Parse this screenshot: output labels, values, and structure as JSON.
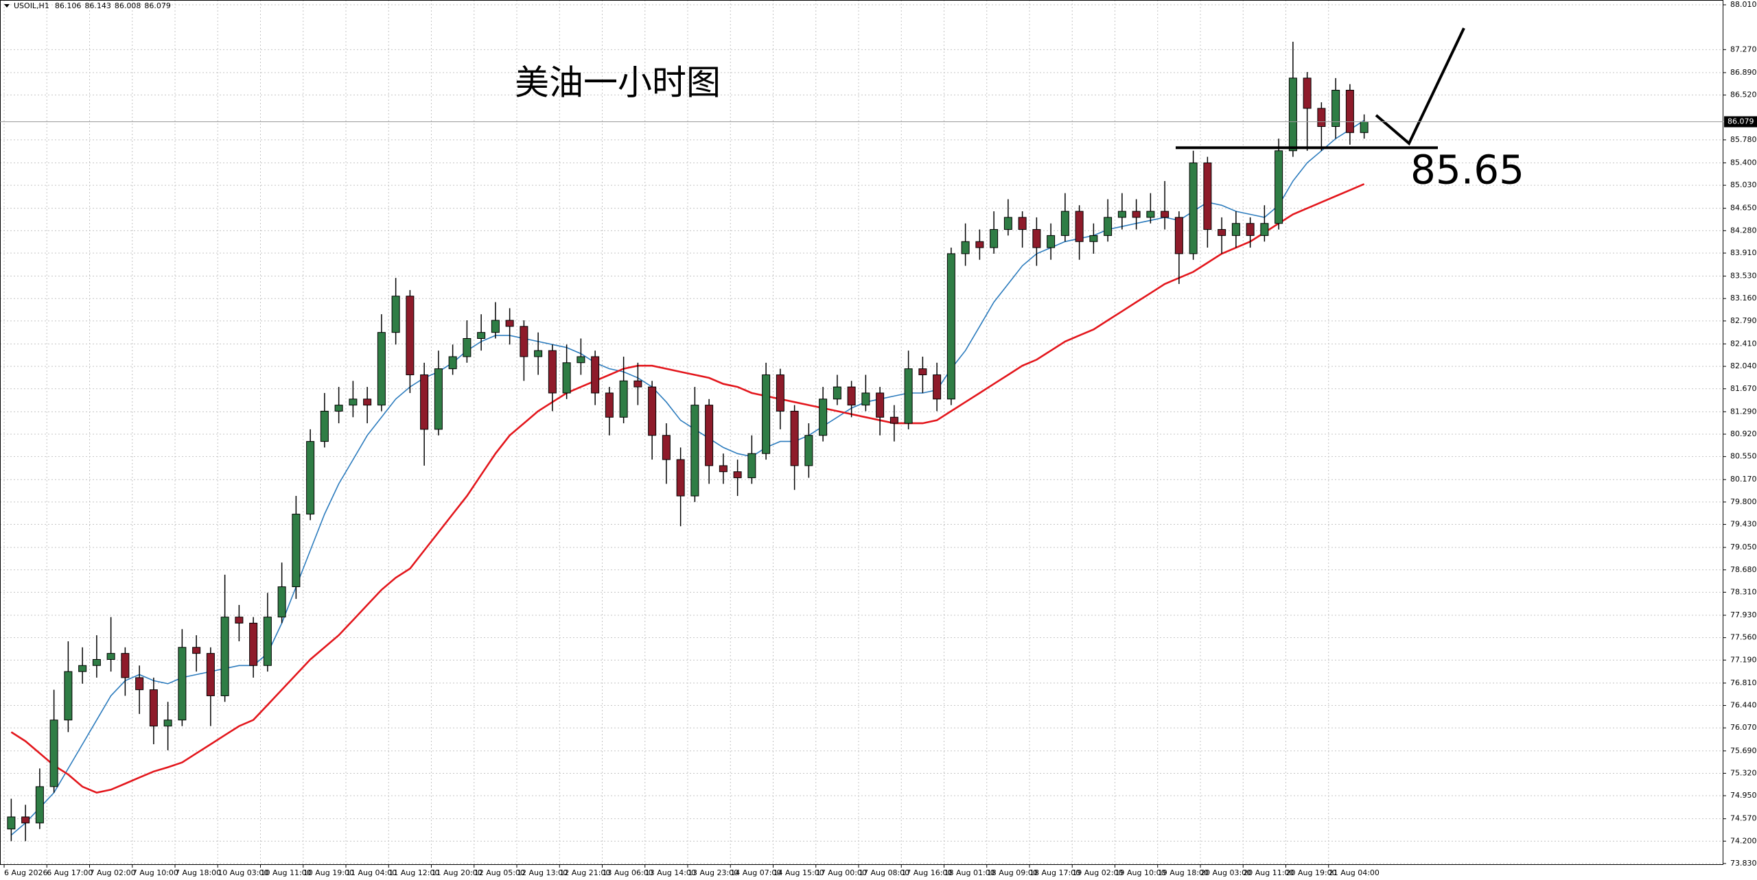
{
  "chart_data": {
    "type": "candlestick",
    "symbol": "USOIL,H1",
    "header_ohlc": [
      86.106,
      86.143,
      86.008,
      86.079
    ],
    "title": "美油一小时图",
    "categories": [
      "6 Aug 2026",
      null,
      null,
      "6 Aug 17:00",
      null,
      null,
      "7 Aug 02:00",
      null,
      null,
      "7 Aug 10:00",
      null,
      null,
      "7 Aug 18:00",
      null,
      null,
      "10 Aug 03:00",
      null,
      null,
      "10 Aug 11:00",
      null,
      null,
      "10 Aug 19:00",
      null,
      null,
      "11 Aug 04:00",
      null,
      null,
      "11 Aug 12:00",
      null,
      null,
      "11 Aug 20:00",
      null,
      null,
      "12 Aug 05:00",
      null,
      null,
      "12 Aug 13:00",
      null,
      null,
      "12 Aug 21:00",
      null,
      null,
      "13 Aug 06:00",
      null,
      null,
      "13 Aug 14:00",
      null,
      null,
      "13 Aug 23:00",
      null,
      null,
      "14 Aug 07:00",
      null,
      null,
      "14 Aug 15:00",
      null,
      null,
      "17 Aug 00:00",
      null,
      null,
      "17 Aug 08:00",
      null,
      null,
      "17 Aug 16:00",
      null,
      null,
      "18 Aug 01:00",
      null,
      null,
      "18 Aug 09:00",
      null,
      null,
      "18 Aug 17:00",
      null,
      null,
      "19 Aug 02:00",
      null,
      null,
      "19 Aug 10:00",
      null,
      null,
      "19 Aug 18:00",
      null,
      null,
      "20 Aug 03:00",
      null,
      null,
      "20 Aug 11:00",
      null,
      null,
      "20 Aug 19:00",
      null,
      null,
      "21 Aug 04:00",
      null,
      null
    ],
    "open": [
      74.4,
      74.6,
      74.5,
      75.1,
      76.2,
      77.0,
      77.1,
      77.2,
      77.3,
      76.9,
      76.7,
      76.1,
      76.2,
      77.4,
      77.3,
      76.6,
      77.9,
      77.8,
      77.1,
      77.9,
      78.4,
      79.6,
      80.8,
      81.3,
      81.4,
      81.5,
      81.4,
      82.6,
      83.2,
      81.9,
      81.0,
      82.0,
      82.2,
      82.5,
      82.6,
      82.8,
      82.7,
      82.2,
      82.3,
      81.6,
      82.1,
      82.2,
      81.6,
      81.2,
      81.8,
      81.7,
      80.9,
      80.5,
      79.9,
      81.4,
      80.4,
      80.3,
      80.2,
      80.6,
      81.9,
      81.3,
      80.4,
      80.9,
      81.5,
      81.7,
      81.4,
      81.6,
      81.2,
      81.1,
      82.0,
      81.9,
      81.5,
      83.9,
      84.1,
      84.0,
      84.3,
      84.5,
      84.3,
      84.0,
      84.2,
      84.6,
      84.1,
      84.2,
      84.5,
      84.6,
      84.5,
      84.6,
      84.5,
      83.9,
      85.4,
      84.3,
      84.2,
      84.4,
      84.2,
      84.4,
      85.6,
      86.8,
      86.3,
      86.0,
      86.6,
      85.9
    ],
    "high": [
      74.9,
      74.8,
      75.4,
      76.7,
      77.5,
      77.4,
      77.6,
      77.9,
      77.4,
      77.1,
      76.9,
      76.5,
      77.7,
      77.6,
      77.4,
      78.6,
      78.1,
      77.9,
      78.3,
      78.8,
      79.9,
      81.0,
      81.6,
      81.7,
      81.8,
      81.7,
      82.9,
      83.5,
      83.3,
      82.1,
      82.3,
      82.4,
      82.8,
      82.9,
      83.1,
      83.0,
      82.8,
      82.6,
      82.4,
      82.4,
      82.5,
      82.3,
      81.7,
      82.2,
      82.1,
      81.8,
      81.1,
      80.7,
      81.7,
      81.5,
      80.6,
      80.5,
      80.9,
      82.1,
      82.0,
      81.4,
      81.1,
      81.7,
      81.9,
      81.8,
      81.9,
      81.7,
      81.4,
      82.3,
      82.2,
      82.1,
      84.0,
      84.4,
      84.3,
      84.6,
      84.8,
      84.6,
      84.5,
      84.4,
      84.9,
      84.7,
      84.4,
      84.8,
      84.9,
      84.8,
      84.9,
      85.1,
      84.6,
      85.6,
      85.5,
      84.5,
      84.6,
      84.5,
      84.7,
      85.8,
      87.4,
      86.9,
      86.4,
      86.8,
      86.7,
      86.2
    ],
    "low": [
      74.2,
      74.2,
      74.4,
      75.0,
      76.0,
      76.8,
      76.9,
      77.0,
      76.6,
      76.3,
      75.8,
      75.7,
      76.1,
      77.0,
      76.1,
      76.5,
      77.5,
      76.9,
      77.0,
      77.8,
      78.2,
      79.5,
      80.7,
      81.1,
      81.2,
      81.1,
      81.3,
      82.4,
      81.6,
      80.4,
      80.9,
      81.9,
      82.1,
      82.3,
      82.5,
      82.4,
      81.8,
      81.9,
      81.3,
      81.5,
      81.9,
      81.4,
      80.9,
      81.1,
      81.4,
      80.5,
      80.1,
      79.4,
      79.8,
      80.1,
      80.1,
      79.9,
      80.1,
      80.5,
      81.0,
      80.0,
      80.2,
      80.8,
      81.4,
      81.2,
      81.3,
      80.9,
      80.8,
      81.0,
      81.6,
      81.3,
      81.4,
      83.7,
      83.8,
      83.9,
      84.2,
      84.0,
      83.7,
      83.8,
      84.1,
      83.8,
      83.9,
      84.1,
      84.3,
      84.3,
      84.4,
      84.3,
      83.4,
      83.8,
      84.0,
      83.9,
      84.0,
      84.0,
      84.1,
      84.3,
      85.5,
      85.6,
      85.6,
      85.8,
      85.7,
      85.8
    ],
    "close": [
      74.6,
      74.5,
      75.1,
      76.2,
      77.0,
      77.1,
      77.2,
      77.3,
      76.9,
      76.7,
      76.1,
      76.2,
      77.4,
      77.3,
      76.6,
      77.9,
      77.8,
      77.1,
      77.9,
      78.4,
      79.6,
      80.8,
      81.3,
      81.4,
      81.5,
      81.4,
      82.6,
      83.2,
      81.9,
      81.0,
      82.0,
      82.2,
      82.5,
      82.6,
      82.8,
      82.7,
      82.2,
      82.3,
      81.6,
      82.1,
      82.2,
      81.6,
      81.2,
      81.8,
      81.7,
      80.9,
      80.5,
      79.9,
      81.4,
      80.4,
      80.3,
      80.2,
      80.6,
      81.9,
      81.3,
      80.4,
      80.9,
      81.5,
      81.7,
      81.4,
      81.6,
      81.2,
      81.1,
      82.0,
      81.9,
      81.5,
      83.9,
      84.1,
      84.0,
      84.3,
      84.5,
      84.3,
      84.0,
      84.2,
      84.6,
      84.1,
      84.2,
      84.5,
      84.6,
      84.5,
      84.6,
      84.5,
      83.9,
      85.4,
      84.3,
      84.2,
      84.4,
      84.2,
      84.4,
      85.6,
      86.8,
      86.3,
      86.0,
      86.6,
      85.9,
      86.08
    ],
    "up_color": "#2f7d45",
    "down_color": "#8e1b2a",
    "moving_averages": [
      {
        "color": "#2b7bbd",
        "values": [
          74.3,
          74.5,
          74.75,
          75.0,
          75.4,
          75.8,
          76.2,
          76.6,
          76.85,
          76.95,
          76.85,
          76.8,
          76.9,
          76.95,
          77.0,
          77.05,
          77.1,
          77.1,
          77.3,
          77.8,
          78.4,
          79.0,
          79.6,
          80.1,
          80.5,
          80.9,
          81.2,
          81.5,
          81.7,
          81.85,
          81.95,
          82.1,
          82.3,
          82.45,
          82.55,
          82.55,
          82.5,
          82.45,
          82.4,
          82.35,
          82.25,
          82.1,
          82.0,
          81.95,
          81.85,
          81.7,
          81.45,
          81.15,
          81.0,
          80.85,
          80.7,
          80.6,
          80.55,
          80.7,
          80.8,
          80.8,
          80.9,
          81.05,
          81.2,
          81.35,
          81.45,
          81.5,
          81.55,
          81.6,
          81.6,
          81.65,
          82.0,
          82.3,
          82.7,
          83.1,
          83.4,
          83.7,
          83.9,
          84.0,
          84.1,
          84.15,
          84.2,
          84.3,
          84.35,
          84.4,
          84.45,
          84.5,
          84.45,
          84.6,
          84.75,
          84.7,
          84.6,
          84.55,
          84.5,
          84.7,
          85.1,
          85.4,
          85.6,
          85.8,
          85.95,
          86.1
        ]
      },
      {
        "color": "#e3161c",
        "values": [
          76.0,
          75.85,
          75.65,
          75.45,
          75.3,
          75.1,
          75.0,
          75.05,
          75.15,
          75.25,
          75.35,
          75.42,
          75.5,
          75.65,
          75.8,
          75.95,
          76.1,
          76.2,
          76.45,
          76.7,
          76.95,
          77.2,
          77.4,
          77.6,
          77.85,
          78.1,
          78.35,
          78.55,
          78.7,
          79.0,
          79.3,
          79.6,
          79.9,
          80.25,
          80.6,
          80.9,
          81.1,
          81.3,
          81.45,
          81.6,
          81.7,
          81.8,
          81.9,
          82.0,
          82.05,
          82.05,
          82.0,
          81.95,
          81.9,
          81.85,
          81.75,
          81.7,
          81.6,
          81.55,
          81.5,
          81.45,
          81.4,
          81.35,
          81.3,
          81.25,
          81.2,
          81.15,
          81.1,
          81.1,
          81.1,
          81.15,
          81.3,
          81.45,
          81.6,
          81.75,
          81.9,
          82.05,
          82.15,
          82.3,
          82.45,
          82.55,
          82.65,
          82.8,
          82.95,
          83.1,
          83.25,
          83.4,
          83.5,
          83.6,
          83.75,
          83.9,
          84.0,
          84.1,
          84.25,
          84.4,
          84.55,
          84.65,
          84.75,
          84.85,
          84.95,
          85.05
        ]
      }
    ],
    "ylim": [
      73.83,
      88.01
    ],
    "yticks": [
      {
        "value": 88.01,
        "label": "88.010"
      },
      {
        "value": 87.27,
        "label": "87.270"
      },
      {
        "value": 86.89,
        "label": "86.890"
      },
      {
        "value": 86.52,
        "label": "86.520"
      },
      {
        "value": 85.78,
        "label": "85.780"
      },
      {
        "value": 85.4,
        "label": "85.400"
      },
      {
        "value": 85.03,
        "label": "85.030"
      },
      {
        "value": 84.65,
        "label": "84.650"
      },
      {
        "value": 84.28,
        "label": "84.280"
      },
      {
        "value": 83.91,
        "label": "83.910"
      },
      {
        "value": 83.53,
        "label": "83.530"
      },
      {
        "value": 83.16,
        "label": "83.160"
      },
      {
        "value": 82.79,
        "label": "82.790"
      },
      {
        "value": 82.41,
        "label": "82.410"
      },
      {
        "value": 82.04,
        "label": "82.040"
      },
      {
        "value": 81.67,
        "label": "81.670"
      },
      {
        "value": 81.29,
        "label": "81.290"
      },
      {
        "value": 80.92,
        "label": "80.920"
      },
      {
        "value": 80.55,
        "label": "80.550"
      },
      {
        "value": 80.17,
        "label": "80.170"
      },
      {
        "value": 79.8,
        "label": "79.800"
      },
      {
        "value": 79.43,
        "label": "79.430"
      },
      {
        "value": 79.05,
        "label": "79.050"
      },
      {
        "value": 78.68,
        "label": "78.680"
      },
      {
        "value": 78.31,
        "label": "78.310"
      },
      {
        "value": 77.93,
        "label": "77.930"
      },
      {
        "value": 77.56,
        "label": "77.560"
      },
      {
        "value": 77.19,
        "label": "77.190"
      },
      {
        "value": 76.81,
        "label": "76.810"
      },
      {
        "value": 76.44,
        "label": "76.440"
      },
      {
        "value": 76.07,
        "label": "76.070"
      },
      {
        "value": 75.69,
        "label": "75.690"
      },
      {
        "value": 75.32,
        "label": "75.320"
      },
      {
        "value": 74.95,
        "label": "74.950"
      },
      {
        "value": 74.57,
        "label": "74.570"
      },
      {
        "value": 74.2,
        "label": "74.200"
      },
      {
        "value": 73.83,
        "label": "73.830"
      }
    ],
    "grid": true,
    "last_price": 86.079,
    "level": 85.65
  }
}
